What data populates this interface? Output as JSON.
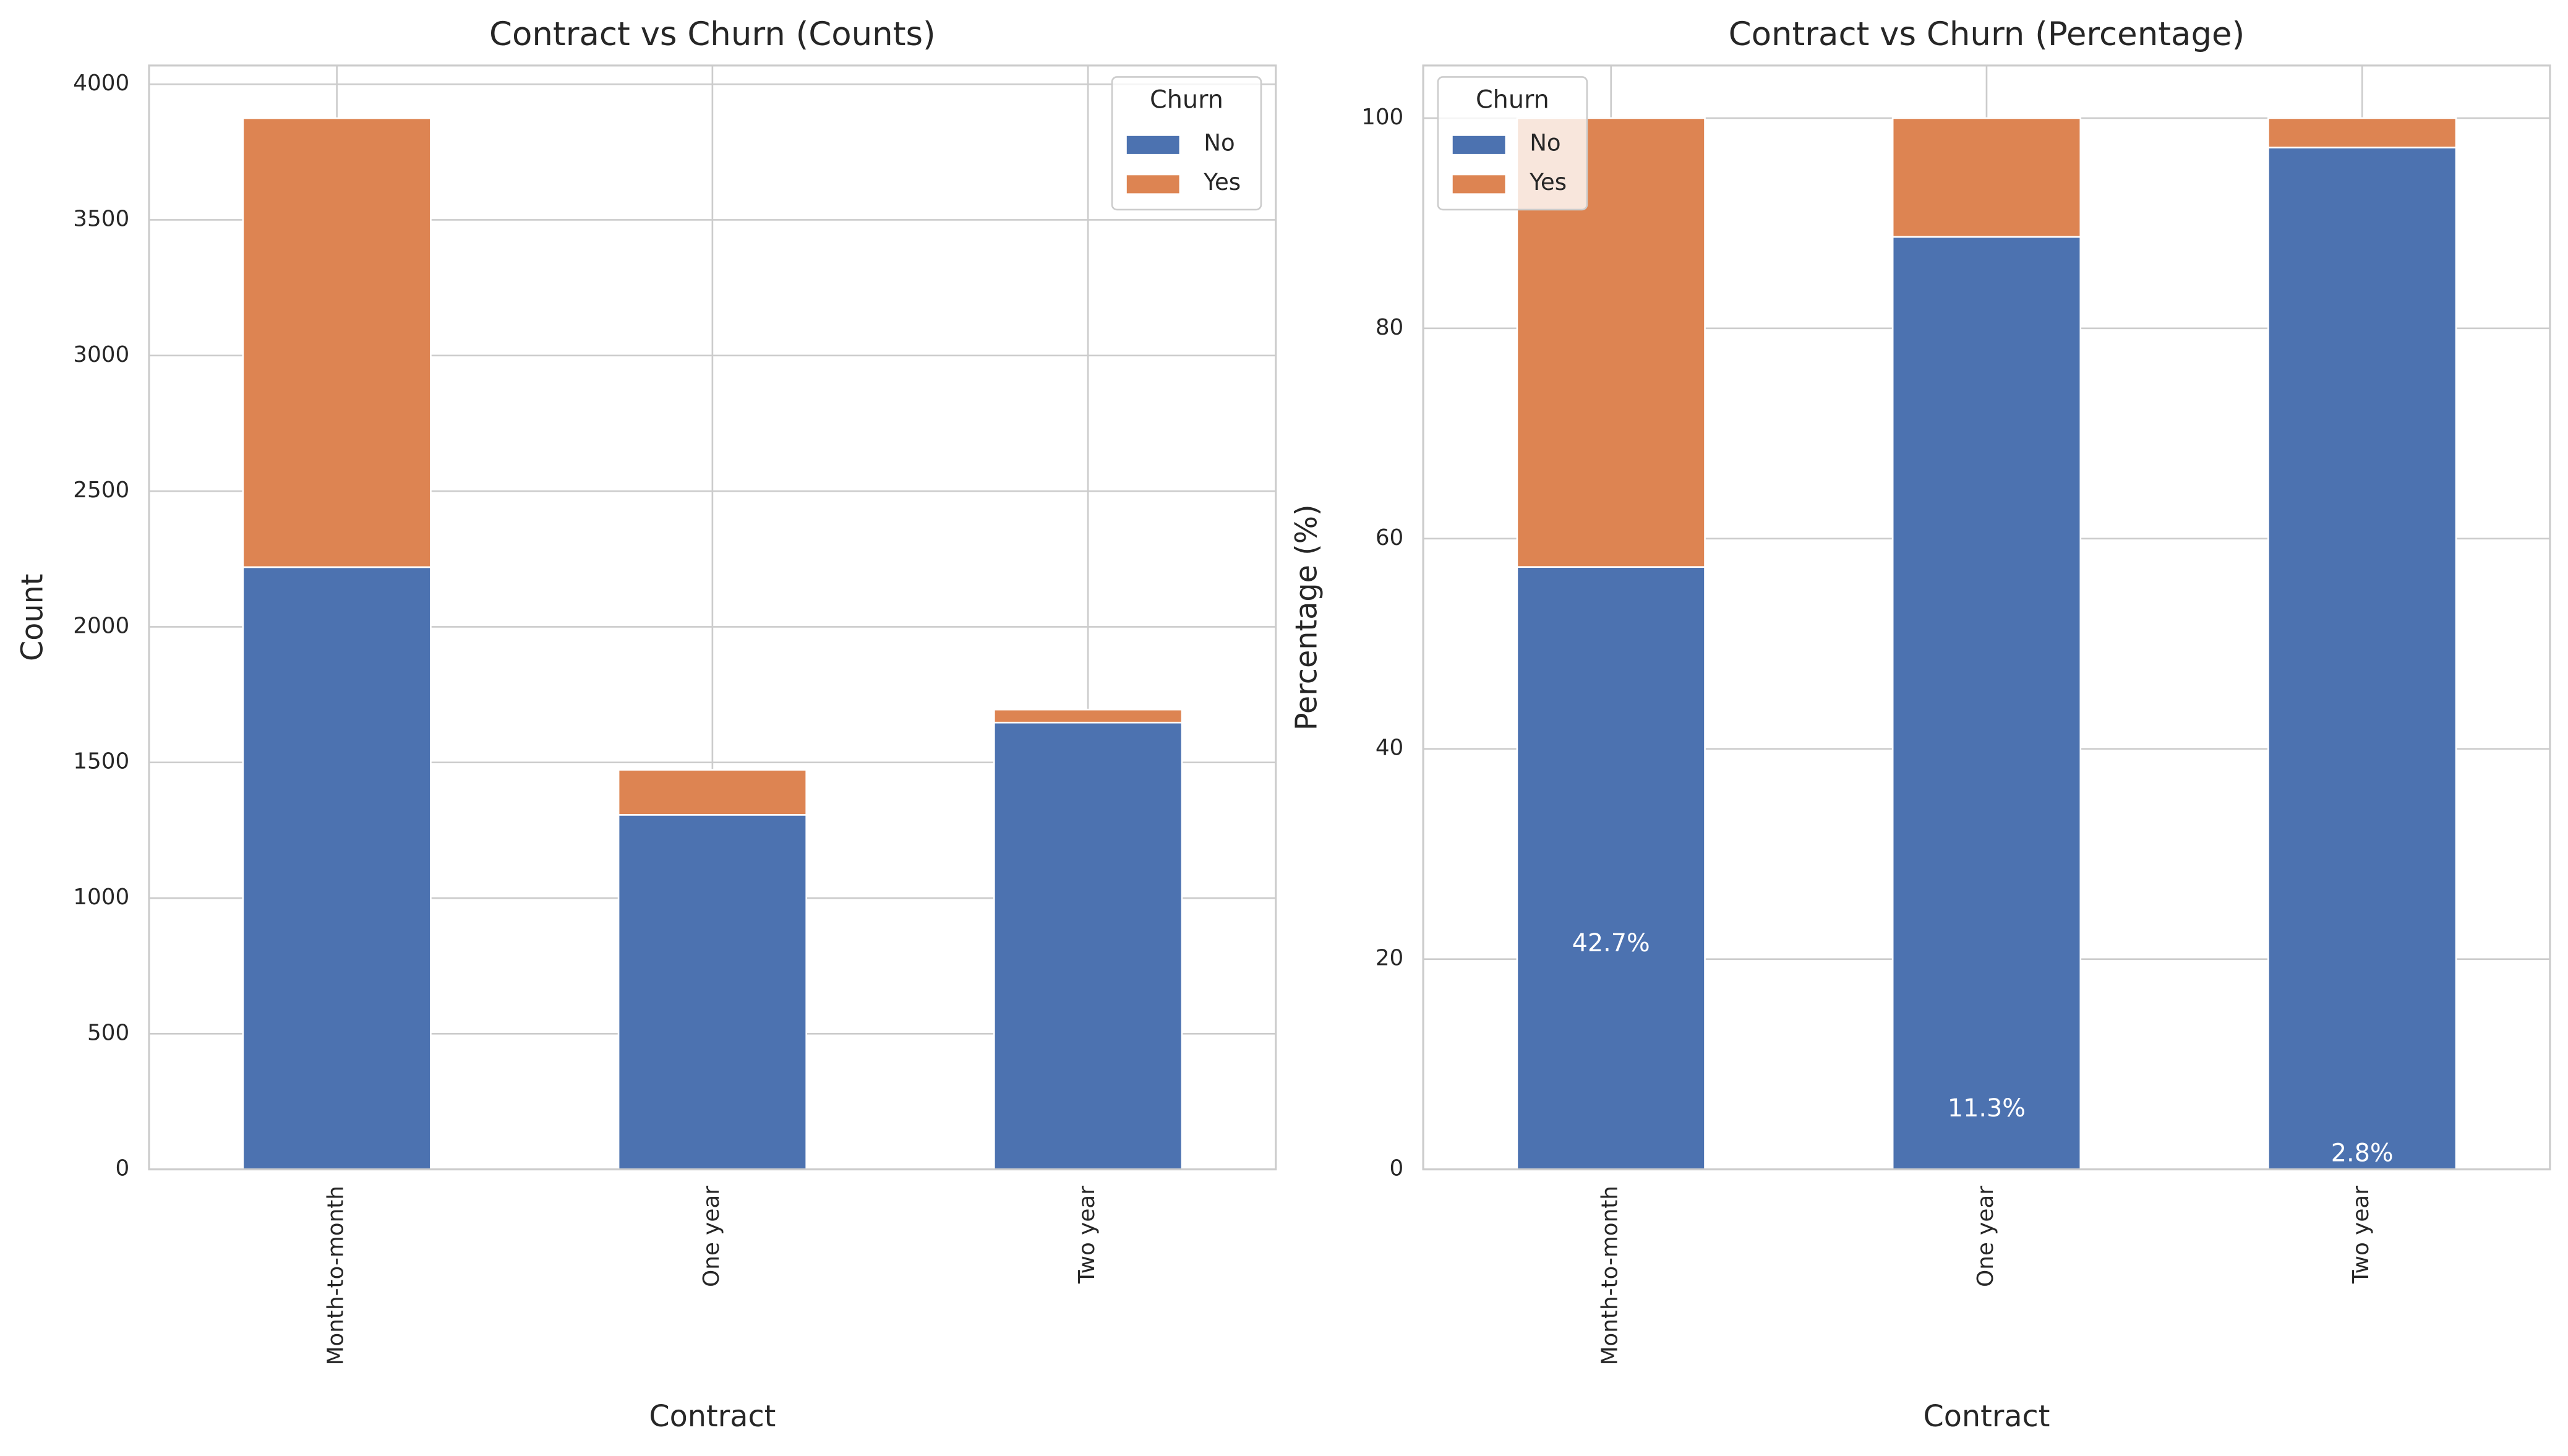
{
  "chart_data": [
    {
      "type": "bar",
      "stacked": true,
      "title": "Contract vs Churn (Counts)",
      "x_label": "Contract",
      "y_label": "Count",
      "categories": [
        "Month-to-month",
        "One year",
        "Two year"
      ],
      "series": [
        {
          "name": "No",
          "color": "#4c72b0",
          "values": [
            2220,
            1307,
            1647
          ]
        },
        {
          "name": "Yes",
          "color": "#dd8452",
          "values": [
            1655,
            166,
            48
          ]
        }
      ],
      "ylim": [
        0,
        4069
      ],
      "yticks": [
        0,
        500,
        1000,
        1500,
        2000,
        2500,
        3000,
        3500,
        4000
      ],
      "grid": true,
      "legend_title": "Churn",
      "legend": "upper right"
    },
    {
      "type": "bar",
      "stacked": true,
      "title": "Contract vs Churn (Percentage)",
      "x_label": "Contract",
      "y_label": "Percentage (%)",
      "categories": [
        "Month-to-month",
        "One year",
        "Two year"
      ],
      "series": [
        {
          "name": "No",
          "color": "#4c72b0",
          "values": [
            57.3,
            88.7,
            97.2
          ]
        },
        {
          "name": "Yes",
          "color": "#dd8452",
          "values": [
            42.7,
            11.3,
            2.8
          ],
          "value_labels": [
            "42.7%",
            "11.3%",
            "2.8%"
          ]
        }
      ],
      "ylim": [
        0,
        105
      ],
      "yticks": [
        0,
        20,
        40,
        60,
        80,
        100
      ],
      "grid": true,
      "legend_title": "Churn",
      "legend": "upper left"
    }
  ]
}
